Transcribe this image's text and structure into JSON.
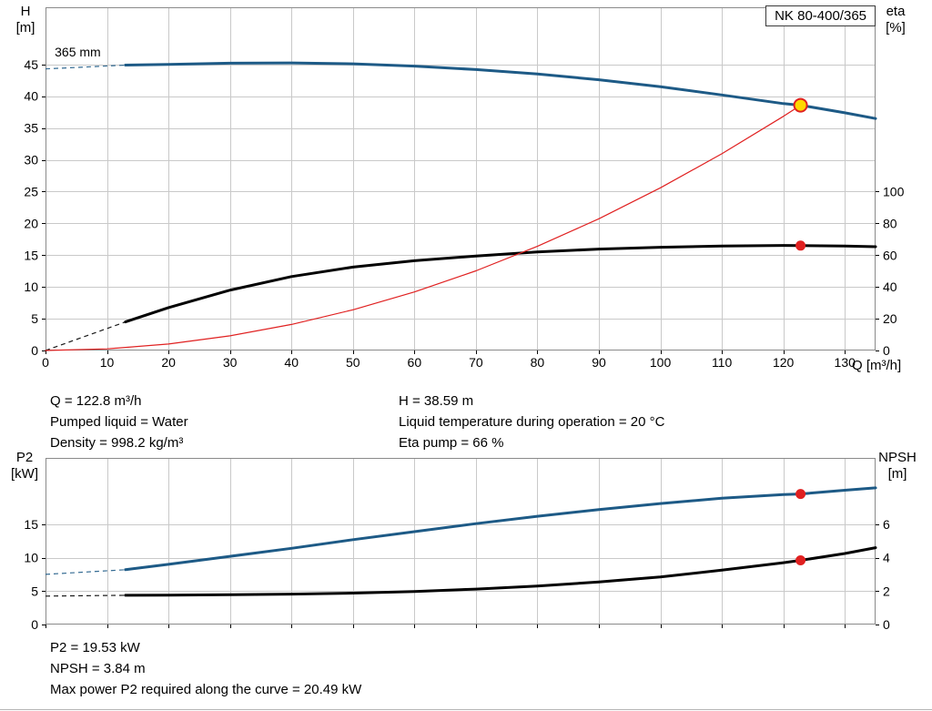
{
  "colors": {
    "curve_blue": "#1d5a86",
    "curve_black": "#000000",
    "curve_red": "#e02020",
    "duty_point_fill": "#ffd800",
    "grid": "#c9c9c9",
    "border": "#8a8a8a"
  },
  "operating_point": {
    "q": "Q = 122.8 m³/h",
    "h": "H = 38.59 m",
    "pumped_liquid": "Pumped liquid = Water",
    "liquid_temperature": "Liquid temperature during operation = 20 °C",
    "density": "Density = 998.2 kg/m³",
    "eta_pump": "Eta pump = 66 %",
    "p2": "P2 = 19.53 kW",
    "npsh": "NPSH = 3.84 m",
    "max_p2": "Max power P2 required along the curve = 20.49 kW"
  },
  "chart_data": [
    {
      "type": "line",
      "title": "NK 80-400/365",
      "x_label": "Q [m³/h]",
      "x_range": [
        0,
        135
      ],
      "x_ticks": [
        0,
        10,
        20,
        30,
        40,
        50,
        60,
        70,
        80,
        90,
        100,
        110,
        120,
        130
      ],
      "show_x_labels": true,
      "left_axis": {
        "label": "H",
        "unit": "[m]",
        "ticks": [
          0,
          5,
          10,
          15,
          20,
          25,
          30,
          35,
          40,
          45
        ],
        "range": [
          0,
          54
        ]
      },
      "right_axis": {
        "label": "eta",
        "unit": "[%]",
        "ticks": [
          0,
          20,
          40,
          60,
          80,
          100
        ],
        "range": [
          0,
          216
        ]
      },
      "annotations": [
        {
          "text": "365 mm",
          "x": 1.5,
          "y": 46.3,
          "axis": "left"
        }
      ],
      "series": [
        {
          "name": "qh-curve",
          "axis": "left",
          "color": "#1d5a86",
          "width": 3,
          "dash_lead": [
            [
              0,
              44.3
            ],
            [
              13,
              44.9
            ]
          ],
          "points": [
            [
              13,
              44.9
            ],
            [
              20,
              45.0
            ],
            [
              30,
              45.2
            ],
            [
              40,
              45.25
            ],
            [
              50,
              45.1
            ],
            [
              60,
              44.75
            ],
            [
              70,
              44.2
            ],
            [
              80,
              43.5
            ],
            [
              90,
              42.6
            ],
            [
              100,
              41.5
            ],
            [
              110,
              40.2
            ],
            [
              120,
              38.85
            ],
            [
              122.8,
              38.59
            ],
            [
              130,
              37.4
            ],
            [
              135,
              36.5
            ]
          ]
        },
        {
          "name": "eta-curve",
          "axis": "right",
          "color": "#000000",
          "width": 3,
          "dash_lead": [
            [
              0,
              0
            ],
            [
              13,
              18
            ]
          ],
          "points": [
            [
              13,
              18
            ],
            [
              20,
              27
            ],
            [
              30,
              38
            ],
            [
              40,
              46.5
            ],
            [
              50,
              52.5
            ],
            [
              60,
              56.5
            ],
            [
              70,
              59.5
            ],
            [
              80,
              62
            ],
            [
              90,
              63.8
            ],
            [
              100,
              65
            ],
            [
              110,
              65.8
            ],
            [
              120,
              66.1
            ],
            [
              122.8,
              66
            ],
            [
              130,
              65.8
            ],
            [
              135,
              65.3
            ]
          ]
        },
        {
          "name": "system-curve",
          "axis": "left",
          "color": "#e02020",
          "width": 1.2,
          "points": [
            [
              0,
              0
            ],
            [
              10,
              0.26
            ],
            [
              20,
              1.02
            ],
            [
              30,
              2.3
            ],
            [
              40,
              4.09
            ],
            [
              50,
              6.4
            ],
            [
              60,
              9.21
            ],
            [
              70,
              12.54
            ],
            [
              80,
              16.38
            ],
            [
              90,
              20.72
            ],
            [
              100,
              25.59
            ],
            [
              110,
              30.96
            ],
            [
              120,
              36.84
            ],
            [
              122.8,
              38.59
            ]
          ]
        }
      ],
      "markers": [
        {
          "name": "duty-point",
          "x": 122.8,
          "y": 38.59,
          "axis": "left",
          "r": 7,
          "fill": "#ffd800",
          "stroke": "#e02020",
          "stroke_width": 2
        },
        {
          "name": "eta-point",
          "x": 122.8,
          "y": 66,
          "axis": "right",
          "r": 5.5,
          "fill": "#e02020",
          "stroke": "none",
          "stroke_width": 0
        }
      ]
    },
    {
      "type": "line",
      "title": "",
      "x_label": "",
      "x_range": [
        0,
        135
      ],
      "x_ticks": [
        0,
        10,
        20,
        30,
        40,
        50,
        60,
        70,
        80,
        90,
        100,
        110,
        120,
        130
      ],
      "show_x_labels": false,
      "left_axis": {
        "label": "P2",
        "unit": "[kW]",
        "ticks": [
          0,
          5,
          10,
          15
        ],
        "range": [
          0,
          24.93
        ]
      },
      "right_axis": {
        "label": "NPSH",
        "unit": "[m]",
        "ticks": [
          0,
          2,
          4,
          6
        ],
        "range": [
          0,
          9.97
        ]
      },
      "annotations": [],
      "series": [
        {
          "name": "p2-curve",
          "axis": "left",
          "color": "#1d5a86",
          "width": 3,
          "dash_lead": [
            [
              0,
              7.5
            ],
            [
              13,
              8.2
            ]
          ],
          "points": [
            [
              13,
              8.2
            ],
            [
              20,
              9.0
            ],
            [
              30,
              10.2
            ],
            [
              40,
              11.4
            ],
            [
              50,
              12.7
            ],
            [
              60,
              13.9
            ],
            [
              70,
              15.1
            ],
            [
              80,
              16.2
            ],
            [
              90,
              17.2
            ],
            [
              100,
              18.1
            ],
            [
              110,
              18.9
            ],
            [
              120,
              19.45
            ],
            [
              122.8,
              19.53
            ],
            [
              130,
              20.1
            ],
            [
              135,
              20.45
            ]
          ]
        },
        {
          "name": "npsh-curve",
          "axis": "right",
          "color": "#000000",
          "width": 3,
          "dash_lead": [
            [
              0,
              1.7
            ],
            [
              13,
              1.75
            ]
          ],
          "points": [
            [
              13,
              1.75
            ],
            [
              20,
              1.76
            ],
            [
              30,
              1.78
            ],
            [
              40,
              1.82
            ],
            [
              50,
              1.88
            ],
            [
              60,
              1.98
            ],
            [
              70,
              2.12
            ],
            [
              80,
              2.3
            ],
            [
              90,
              2.55
            ],
            [
              100,
              2.85
            ],
            [
              110,
              3.25
            ],
            [
              120,
              3.7
            ],
            [
              122.8,
              3.84
            ],
            [
              130,
              4.25
            ],
            [
              135,
              4.6
            ]
          ]
        }
      ],
      "markers": [
        {
          "name": "p2-point",
          "x": 122.8,
          "y": 19.53,
          "axis": "left",
          "r": 5.5,
          "fill": "#e02020",
          "stroke": "none",
          "stroke_width": 0
        },
        {
          "name": "npsh-point",
          "x": 122.8,
          "y": 3.84,
          "axis": "right",
          "r": 5.5,
          "fill": "#e02020",
          "stroke": "none",
          "stroke_width": 0
        }
      ]
    }
  ]
}
